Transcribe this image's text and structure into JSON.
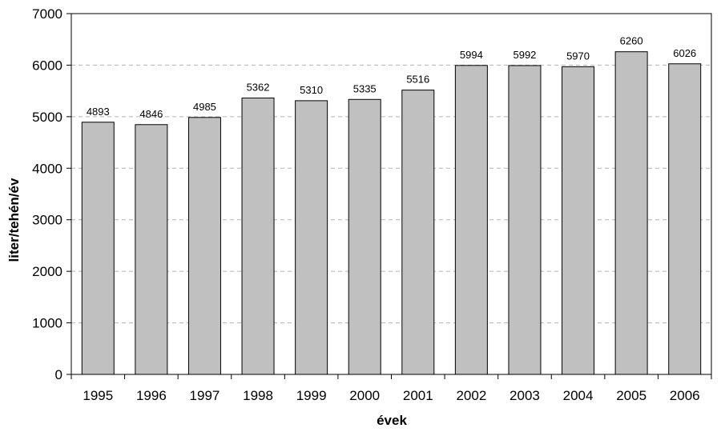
{
  "chart_data": {
    "type": "bar",
    "title": "",
    "xlabel": "évek",
    "ylabel": "liter/tehén/év",
    "ylim": [
      0,
      7000
    ],
    "yticks": [
      0,
      1000,
      2000,
      3000,
      4000,
      5000,
      6000,
      7000
    ],
    "grid": true,
    "legend": "none",
    "categories": [
      "1995",
      "1996",
      "1997",
      "1998",
      "1999",
      "2000",
      "2001",
      "2002",
      "2003",
      "2004",
      "2005",
      "2006"
    ],
    "values": [
      4893,
      4846,
      4985,
      5362,
      5310,
      5335,
      5516,
      5994,
      5992,
      5970,
      6260,
      6026
    ],
    "colors": {
      "bar_fill": "#c0c0c0",
      "bar_stroke": "#000000",
      "gridline": "#b3b3b3",
      "axis": "#000000"
    }
  }
}
